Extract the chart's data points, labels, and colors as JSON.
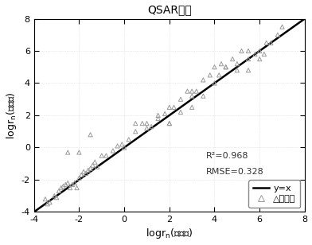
{
  "title": "QSAR模型",
  "xlabel": "logr$_n$(实测值)",
  "ylabel": "logr$_n$(预测值)",
  "xlim": [
    -4,
    8
  ],
  "ylim": [
    -4,
    8
  ],
  "xticks": [
    -4,
    -2,
    0,
    2,
    4,
    6,
    8
  ],
  "yticks": [
    -4,
    -2,
    0,
    2,
    4,
    6,
    8
  ],
  "line_color": "#000000",
  "marker_color": "#999999",
  "bg_color": "#ffffff",
  "r2": "0.968",
  "rmse": "0.328",
  "legend_text_line": "y=x",
  "legend_text_tri": "△训练集",
  "annotation_r2": "R²=0.968",
  "annotation_rmse": "RMSE=0.328",
  "scatter_x": [
    -3.5,
    -3.4,
    -3.3,
    -3.1,
    -3.0,
    -2.9,
    -2.8,
    -2.7,
    -2.6,
    -2.5,
    -2.4,
    -2.3,
    -2.2,
    -2.1,
    -2.0,
    -1.9,
    -1.8,
    -1.7,
    -1.6,
    -1.5,
    -1.4,
    -1.3,
    -1.2,
    -1.0,
    -0.8,
    -0.5,
    -0.3,
    -0.1,
    0.0,
    0.2,
    0.5,
    0.8,
    1.0,
    1.2,
    1.5,
    1.5,
    1.8,
    2.0,
    2.0,
    2.2,
    2.5,
    2.5,
    2.8,
    3.0,
    3.0,
    3.2,
    3.5,
    3.5,
    3.8,
    4.0,
    4.0,
    4.2,
    4.3,
    4.5,
    4.8,
    5.0,
    5.0,
    5.2,
    5.5,
    5.5,
    5.8,
    6.0,
    6.0,
    6.2,
    6.5,
    6.8,
    7.0,
    -2.5,
    -2.0,
    -1.5,
    0.5,
    1.0,
    2.0,
    3.0,
    4.5,
    5.5,
    6.3
  ],
  "scatter_y": [
    -3.2,
    -3.5,
    -3.4,
    -3.0,
    -3.1,
    -2.7,
    -2.5,
    -2.4,
    -2.3,
    -2.2,
    -2.5,
    -2.3,
    -2.2,
    -2.5,
    -1.9,
    -1.7,
    -1.5,
    -1.6,
    -1.4,
    -1.3,
    -1.1,
    -0.9,
    -1.2,
    -0.5,
    -0.5,
    -0.2,
    0.1,
    0.2,
    0.0,
    0.5,
    1.0,
    1.5,
    1.5,
    1.3,
    1.8,
    2.0,
    2.1,
    2.5,
    1.5,
    2.5,
    3.0,
    2.2,
    3.5,
    3.5,
    2.5,
    3.5,
    4.2,
    3.2,
    4.5,
    5.0,
    4.0,
    4.5,
    5.2,
    5.0,
    5.5,
    5.2,
    4.8,
    6.0,
    5.5,
    6.0,
    5.8,
    6.0,
    5.5,
    5.8,
    6.5,
    7.0,
    7.5,
    -0.3,
    -0.3,
    0.8,
    1.5,
    1.2,
    1.5,
    3.2,
    5.0,
    4.8,
    6.5
  ]
}
